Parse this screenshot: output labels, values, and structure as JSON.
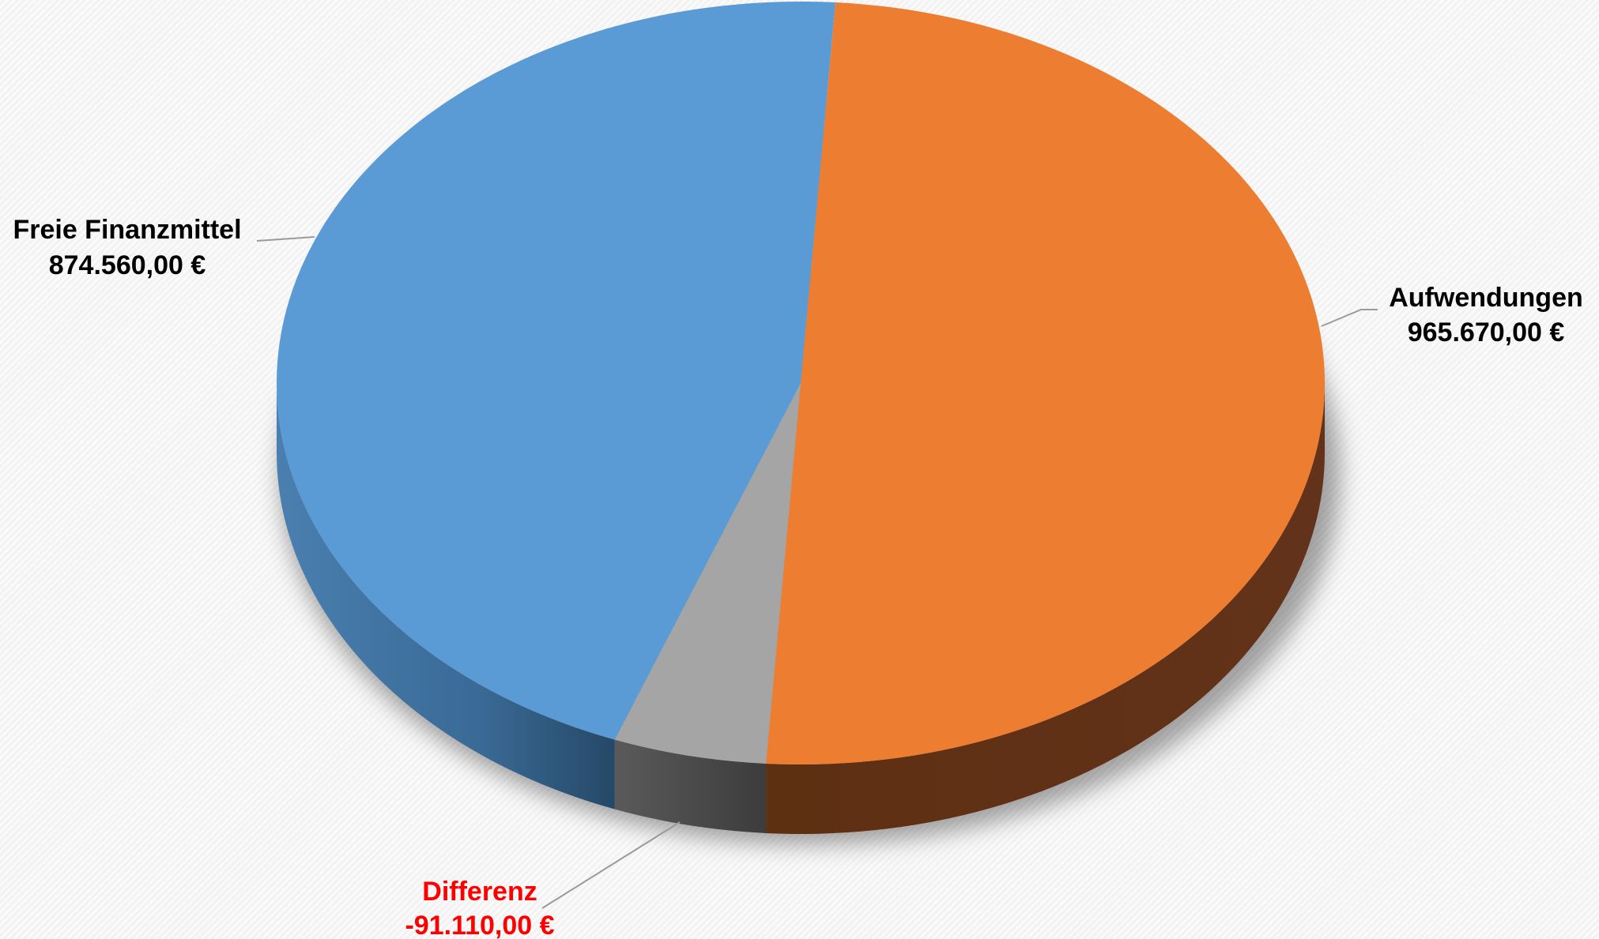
{
  "chart_data": {
    "type": "pie",
    "style": "3d",
    "series": [
      {
        "name": "Aufwendungen",
        "value": 965670.0,
        "display": "965.670,00 €",
        "color": "#ED7D31",
        "side_color": "#5E3012",
        "label_color": "#000000"
      },
      {
        "name": "Differenz",
        "value": -91110.0,
        "display": "-91.110,00 €",
        "color": "#A5A5A5",
        "side_color": "#454545",
        "label_color": "#FF0000"
      },
      {
        "name": "Freie Finanzmittel",
        "value": 874560.0,
        "display": "874.560,00 €",
        "color": "#5B9BD5",
        "side_color": "#2E5478",
        "label_color": "#000000"
      }
    ],
    "legend": "none",
    "data_labels": "outside-with-leader-lines"
  }
}
